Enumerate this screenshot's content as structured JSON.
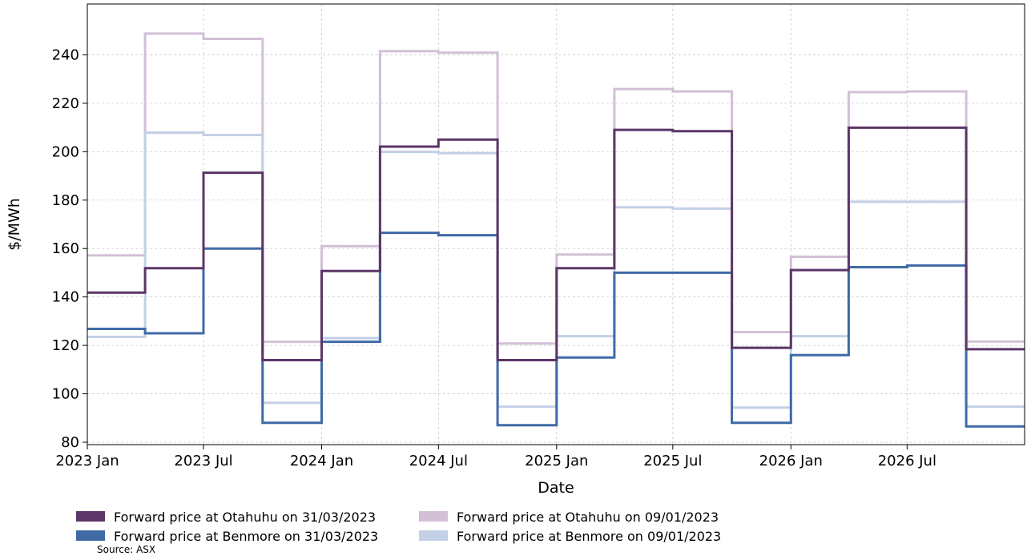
{
  "chart_data": {
    "type": "line",
    "step": true,
    "xlabel": "Date",
    "ylabel": "$/MWh",
    "ylim": [
      79,
      261
    ],
    "xlim": [
      "2023-01-01",
      "2026-12-31"
    ],
    "grid": true,
    "x_tick_labels": [
      "2023 Jan",
      "2023 Jul",
      "2024 Jan",
      "2024 Jul",
      "2025 Jan",
      "2025 Jul",
      "2026 Jan",
      "2026 Jul"
    ],
    "x_ticks": [
      "2023-01-01",
      "2023-07-01",
      "2024-01-01",
      "2024-07-01",
      "2025-01-01",
      "2025-07-01",
      "2026-01-01",
      "2026-07-01"
    ],
    "y_ticks": [
      80,
      100,
      120,
      140,
      160,
      180,
      200,
      220,
      240
    ],
    "quarters": [
      "2023-01-01",
      "2023-04-01",
      "2023-07-01",
      "2023-10-01",
      "2024-01-01",
      "2024-04-01",
      "2024-07-01",
      "2024-10-01",
      "2025-01-01",
      "2025-04-01",
      "2025-07-01",
      "2025-10-01",
      "2026-01-01",
      "2026-04-01",
      "2026-07-01",
      "2026-10-01",
      "2026-12-31"
    ],
    "series": [
      {
        "name": "Forward price at Otahuhu on 09/01/2023",
        "color": "#d2c0d6",
        "values": [
          157.2,
          248.8,
          246.6,
          121.5,
          161.0,
          241.5,
          240.9,
          120.8,
          157.5,
          225.9,
          224.9,
          125.5,
          156.6,
          224.6,
          224.9,
          121.6
        ]
      },
      {
        "name": "Forward price at Benmore on 09/01/2023",
        "color": "#c3d0e6",
        "values": [
          123.5,
          207.9,
          206.9,
          96.3,
          123.0,
          199.9,
          199.4,
          94.7,
          123.8,
          177.0,
          176.5,
          94.3,
          123.8,
          179.3,
          179.3,
          94.7
        ]
      },
      {
        "name": "Forward price at Benmore on 31/03/2023",
        "color": "#3f6aa6",
        "values": [
          126.8,
          125.0,
          160.0,
          88.0,
          121.5,
          166.5,
          165.5,
          87.0,
          115.0,
          150.0,
          150.0,
          88.0,
          116.0,
          152.3,
          153.0,
          86.5
        ]
      },
      {
        "name": "Forward price at Otahuhu on 31/03/2023",
        "color": "#5c3569",
        "values": [
          141.8,
          151.9,
          191.3,
          113.9,
          150.7,
          202.1,
          205.0,
          113.9,
          151.9,
          209.0,
          208.5,
          119.0,
          151.1,
          209.9,
          209.9,
          118.4
        ]
      }
    ],
    "legend": {
      "placement": "bottom-left",
      "entries": [
        "Forward price at Otahuhu on 31/03/2023",
        "Forward price at Otahuhu on 09/01/2023",
        "Forward price at Benmore on 31/03/2023",
        "Forward price at Benmore on 09/01/2023"
      ],
      "colors": [
        "#5c3569",
        "#d2c0d6",
        "#3f6aa6",
        "#c3d0e6"
      ]
    },
    "source": "Source: ASX"
  }
}
